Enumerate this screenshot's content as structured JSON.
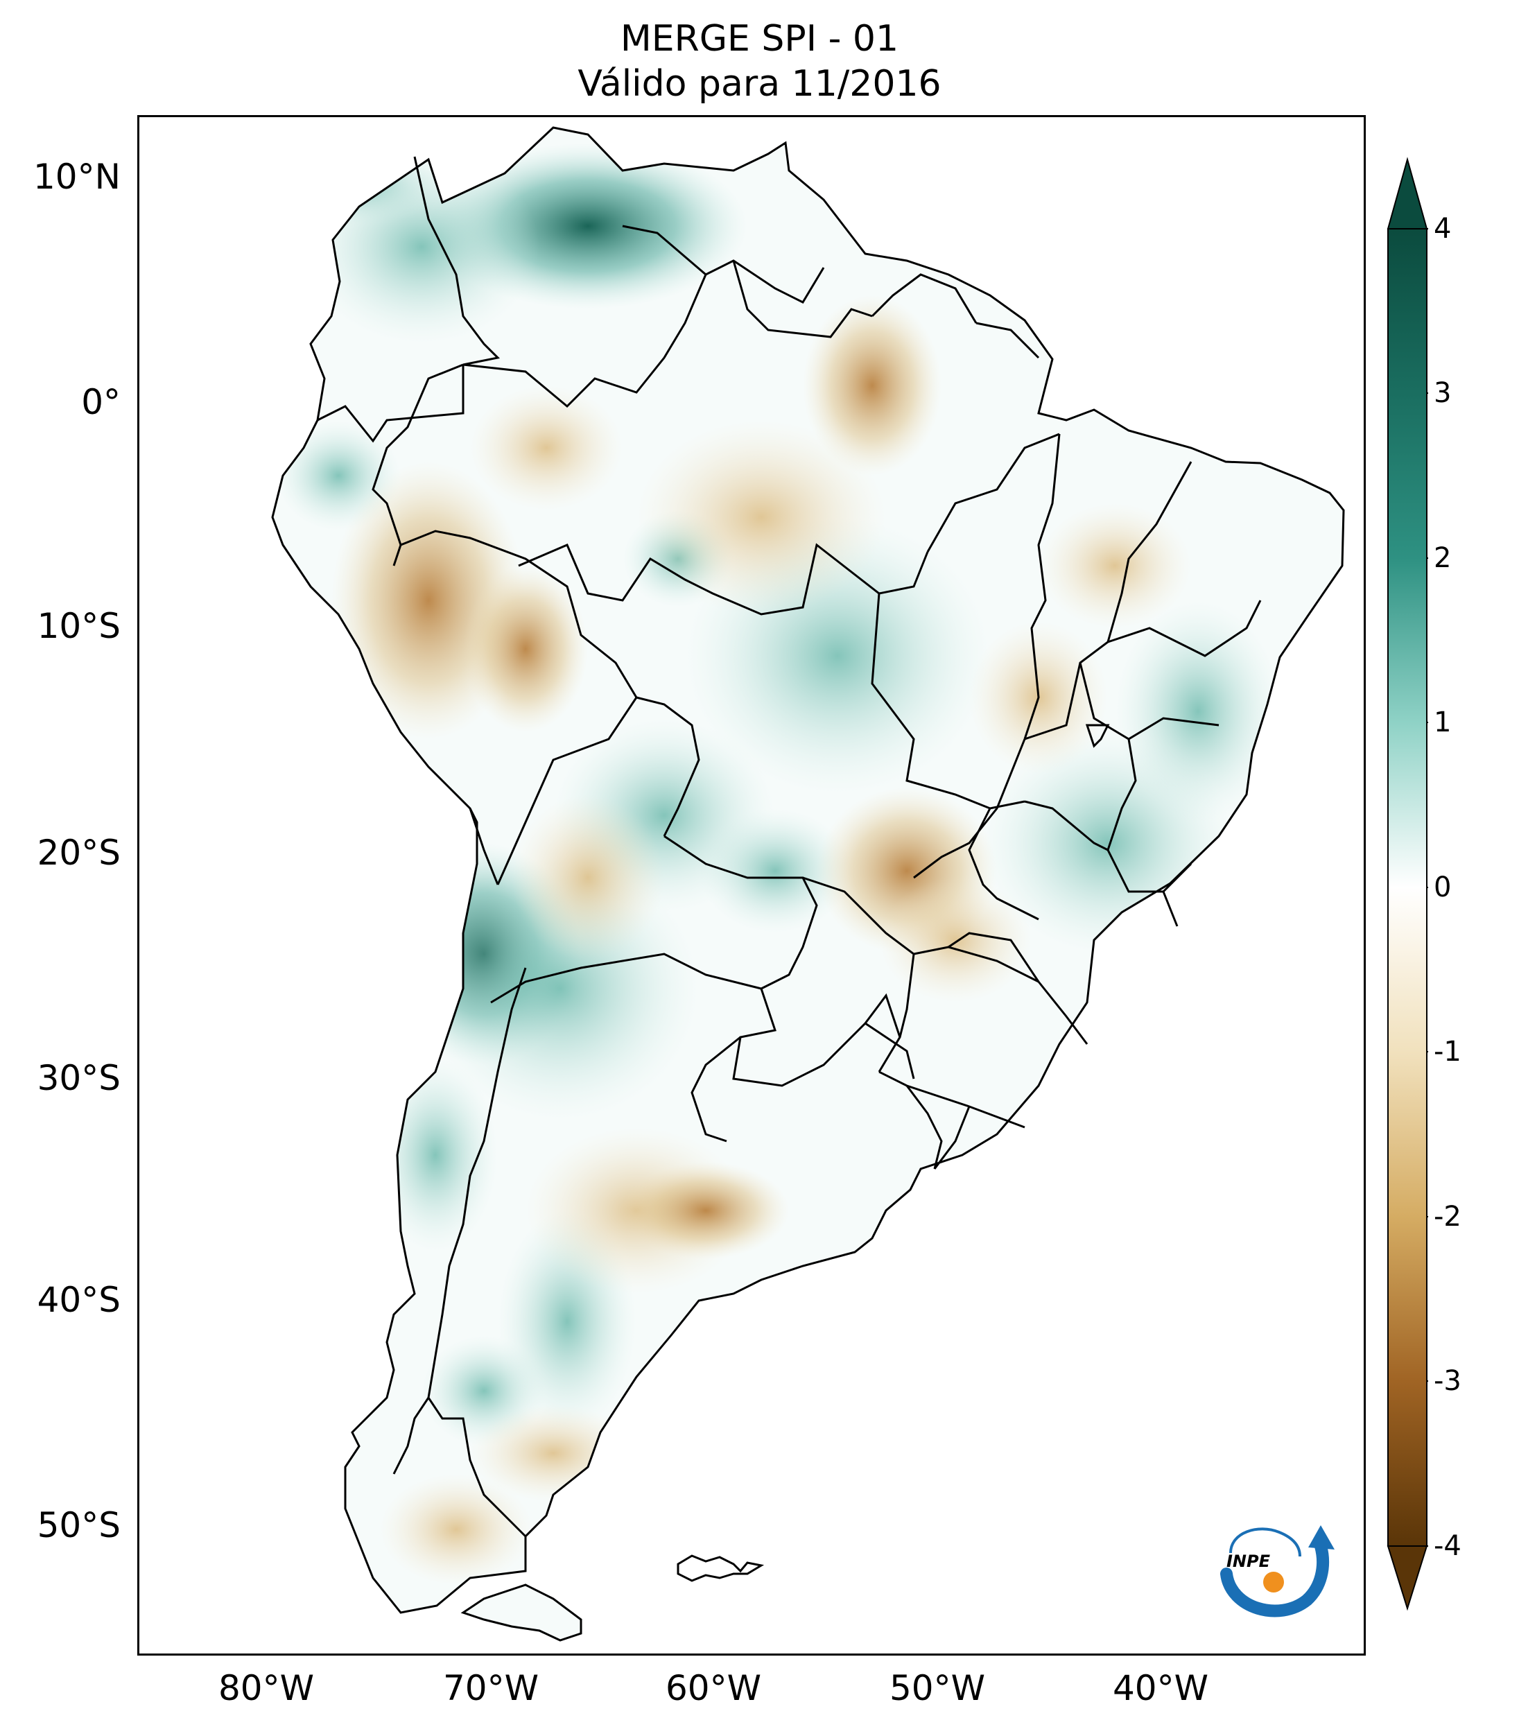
{
  "title": {
    "line1": "MERGE   SPI - 01",
    "line2": "Válido para 11/2016"
  },
  "axes": {
    "lat_labels": [
      "10°N",
      "0°",
      "10°S",
      "20°S",
      "30°S",
      "40°S",
      "50°S"
    ],
    "lon_labels": [
      "80°W",
      "70°W",
      "60°W",
      "50°W",
      "40°W"
    ]
  },
  "colorbar": {
    "ticks": [
      "4",
      "3",
      "2",
      "1",
      "0",
      "-1",
      "-2",
      "-3",
      "-4"
    ],
    "colors": {
      "wet_extreme": "#0b4b3e",
      "wet_high": "#2a8a7d",
      "wet_mid": "#7fcdbf",
      "wet_low": "#d4eee9",
      "neutral": "#ffffff",
      "dry_low": "#f0e2c2",
      "dry_mid": "#d7b06b",
      "dry_high": "#a9692a",
      "dry_extreme": "#5a3508"
    }
  },
  "logo": {
    "text": "INPE"
  }
}
